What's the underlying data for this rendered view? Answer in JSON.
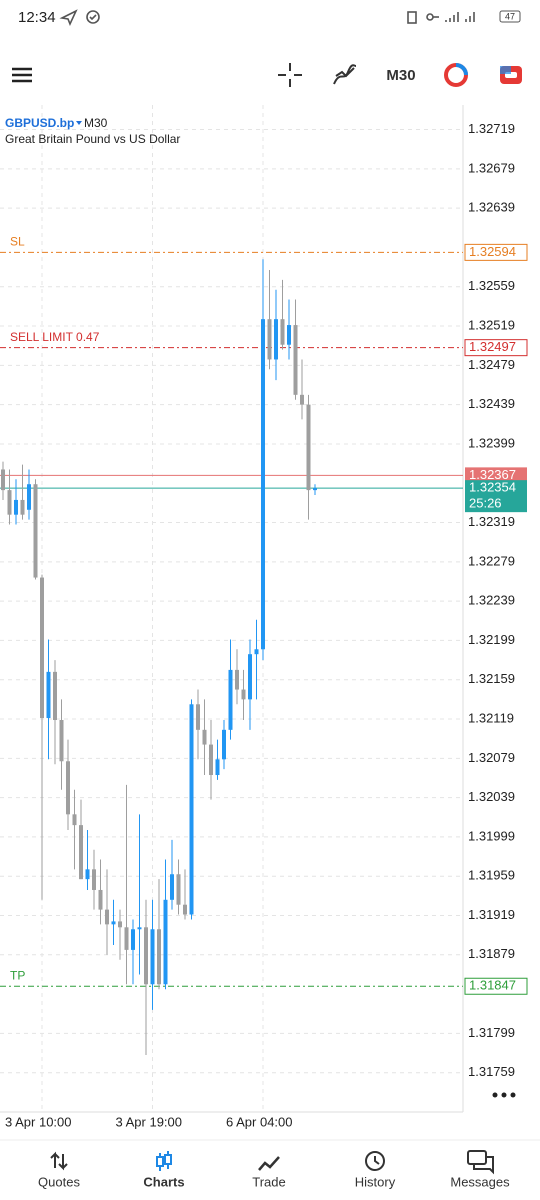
{
  "status_bar": {
    "time": "12:34",
    "battery": "47"
  },
  "toolbar": {
    "timeframe": "M30"
  },
  "chart_data": {
    "type": "candlestick",
    "symbol": "GBPUSD.bp",
    "timeframe": "M30",
    "description": "Great Britain Pound vs US Dollar",
    "categories": [
      null,
      null,
      null,
      null,
      null,
      null,
      "3 Apr 10:00",
      null,
      null,
      null,
      null,
      null,
      null,
      null,
      null,
      null,
      null,
      null,
      null,
      null,
      null,
      null,
      null,
      "3 Apr 19:00",
      null,
      null,
      null,
      null,
      null,
      null,
      null,
      null,
      null,
      null,
      null,
      null,
      null,
      null,
      null,
      null,
      "6 Apr 04:00",
      null,
      null,
      null,
      null,
      null,
      null,
      null,
      null
    ],
    "open": [
      1.32373,
      1.32352,
      1.32327,
      1.32342,
      1.32332,
      1.32358,
      1.32263,
      1.3212,
      1.32167,
      1.32118,
      1.32076,
      1.32022,
      1.32011,
      1.31956,
      1.31966,
      1.31945,
      1.31925,
      1.3191,
      1.31913,
      1.31907,
      1.31884,
      1.31905,
      1.31907,
      1.31849,
      1.31905,
      1.31849,
      1.31935,
      1.31961,
      1.3193,
      1.3192,
      1.32134,
      1.32108,
      1.32093,
      1.32062,
      1.32078,
      1.32108,
      1.32169,
      1.32149,
      1.32139,
      1.32185,
      1.3219,
      1.32526,
      1.32485,
      1.32526,
      1.325,
      1.3252,
      1.32449,
      1.32439,
      1.32352
    ],
    "high": [
      1.32381,
      1.32373,
      1.32363,
      1.32378,
      1.32373,
      1.32363,
      1.32266,
      1.322,
      1.32179,
      1.32139,
      1.32098,
      1.32047,
      1.32037,
      1.32006,
      1.31986,
      1.31976,
      1.31966,
      1.31935,
      1.31925,
      1.32052,
      1.31915,
      1.32022,
      1.31935,
      1.31935,
      1.31956,
      1.31976,
      1.31996,
      1.31976,
      1.31966,
      1.32139,
      1.32149,
      1.32139,
      1.32118,
      1.32098,
      1.32118,
      1.322,
      1.3219,
      1.32169,
      1.322,
      1.3222,
      1.32587,
      1.32576,
      1.32556,
      1.32566,
      1.32546,
      1.32546,
      1.32485,
      1.32449,
      1.32358
    ],
    "low": [
      1.32342,
      1.32317,
      1.32317,
      1.32322,
      1.32322,
      1.32261,
      1.31935,
      1.32078,
      1.32073,
      1.32047,
      1.32006,
      1.31966,
      1.31956,
      1.31945,
      1.31925,
      1.3191,
      1.31879,
      1.31889,
      1.31874,
      1.31849,
      1.31849,
      1.31859,
      1.31777,
      1.31823,
      1.31844,
      1.31844,
      1.31925,
      1.3192,
      1.31915,
      1.31915,
      1.32078,
      1.32062,
      1.32037,
      1.32057,
      1.32068,
      1.32098,
      1.32134,
      1.32118,
      1.32108,
      1.32139,
      1.32179,
      1.32475,
      1.32464,
      1.32495,
      1.32485,
      1.32444,
      1.32424,
      1.32322,
      1.32347
    ],
    "close": [
      1.32352,
      1.32327,
      1.32342,
      1.32327,
      1.32358,
      1.32263,
      1.3212,
      1.32167,
      1.32118,
      1.32076,
      1.32022,
      1.32011,
      1.31956,
      1.31966,
      1.31945,
      1.31925,
      1.3191,
      1.31913,
      1.31907,
      1.31884,
      1.31905,
      1.31907,
      1.31849,
      1.31905,
      1.31849,
      1.31935,
      1.31961,
      1.3193,
      1.3192,
      1.32134,
      1.32108,
      1.32093,
      1.32062,
      1.32078,
      1.32108,
      1.32169,
      1.32149,
      1.32139,
      1.32185,
      1.3219,
      1.32526,
      1.32485,
      1.32526,
      1.325,
      1.3252,
      1.32449,
      1.32439,
      1.32352,
      1.32354
    ],
    "up_color": "#2196f3",
    "down_color": "#9e9e9e",
    "ylim": [
      1.31719,
      1.32744
    ],
    "yticks": [
      1.32719,
      1.32679,
      1.32639,
      1.32559,
      1.32519,
      1.32479,
      1.32439,
      1.32399,
      1.32319,
      1.32279,
      1.32239,
      1.32199,
      1.32159,
      1.32119,
      1.32079,
      1.32039,
      1.31999,
      1.31959,
      1.31919,
      1.31879,
      1.31799,
      1.31759
    ],
    "grid": true,
    "levels": [
      {
        "label": "SL",
        "value": 1.32594,
        "color": "#e67e22"
      },
      {
        "label": "SELL LIMIT 0.47",
        "value": 1.32497,
        "color": "#d32f2f"
      },
      {
        "label": "TP",
        "value": 1.31847,
        "color": "#2e9e3a"
      }
    ],
    "ask": {
      "value": 1.32367,
      "color": "#e57373"
    },
    "bid": {
      "value": 1.32354,
      "color": "#26a69a",
      "countdown": "25:26"
    }
  },
  "tabs": [
    "Quotes",
    "Charts",
    "Trade",
    "History",
    "Messages"
  ]
}
